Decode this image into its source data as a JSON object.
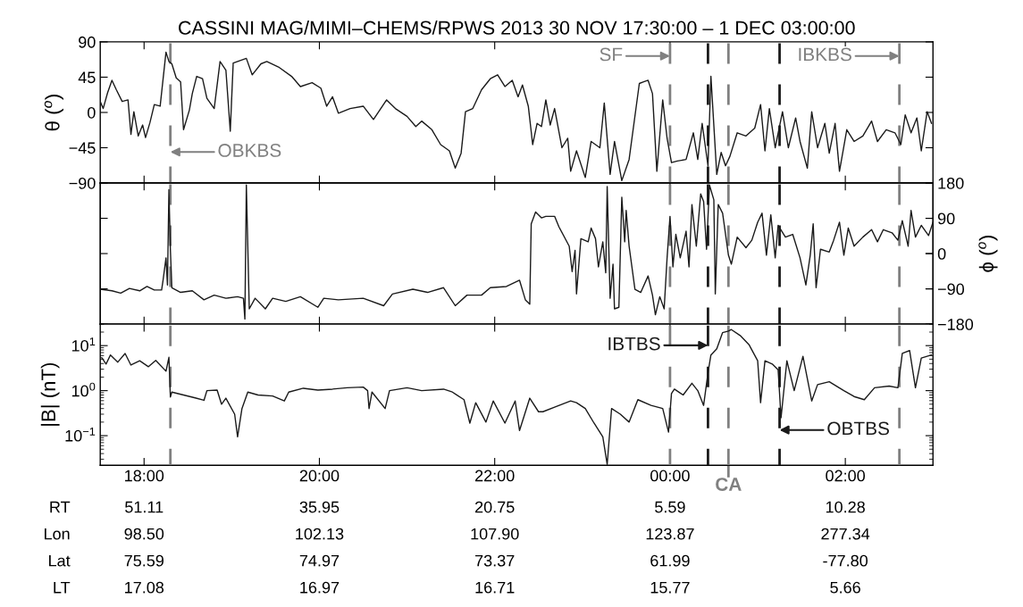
{
  "chart_data": [
    {
      "type": "line",
      "title": "CASSINI MAG/MIMI–CHEMS/RPWS 2013 30 NOV 17:30:00 – 1 DEC 03:00:00",
      "ylabel": "θ ($^{o}$)",
      "tick_labels": "y",
      "xlim": [
        "2013-11-30T17:30",
        "2013-12-01T03:00"
      ],
      "xticks": [
        {
          "value": "2013-11-30T18:00",
          "label": null
        },
        {
          "value": "2013-11-30T20:00",
          "label": null
        },
        {
          "value": "2013-11-30T22:00",
          "label": null
        },
        {
          "value": "2013-12-01T00:00",
          "label": null
        },
        {
          "value": "2013-12-01T02:00",
          "label": null
        }
      ],
      "ylim": [
        -90,
        90
      ],
      "yticks": [
        {
          "value": -90,
          "label": "−90"
        },
        {
          "value": -45,
          "label": "−45"
        },
        0,
        45,
        90
      ],
      "series": [
        {
          "color": "#1a1a1a",
          "x": [
            "2013-11-30T17:30",
            "2013-11-30T17:32",
            "2013-11-30T17:35",
            "2013-11-30T17:38",
            "2013-11-30T17:41",
            "2013-11-30T17:45",
            "2013-11-30T17:49",
            "2013-11-30T17:51",
            "2013-11-30T17:53",
            "2013-11-30T17:56",
            "2013-11-30T17:59",
            "2013-11-30T18:01",
            "2013-11-30T18:04",
            "2013-11-30T18:07",
            "2013-11-30T18:11",
            "2013-11-30T18:15",
            "2013-11-30T18:17",
            "2013-11-30T18:19",
            "2013-11-30T18:22",
            "2013-11-30T18:25",
            "2013-11-30T18:27",
            "2013-11-30T18:31",
            "2013-11-30T18:33",
            "2013-11-30T18:36",
            "2013-11-30T18:40",
            "2013-11-30T18:43",
            "2013-11-30T18:48",
            "2013-11-30T18:52",
            "2013-11-30T18:56",
            "2013-11-30T18:59",
            "2013-11-30T19:01",
            "2013-11-30T19:04",
            "2013-11-30T19:10",
            "2013-11-30T19:14",
            "2013-11-30T19:20",
            "2013-11-30T19:24",
            "2013-11-30T19:32",
            "2013-11-30T19:41",
            "2013-11-30T19:47",
            "2013-11-30T19:55",
            "2013-11-30T20:01",
            "2013-11-30T20:05",
            "2013-11-30T20:09",
            "2013-11-30T20:13",
            "2013-11-30T20:21",
            "2013-11-30T20:30",
            "2013-11-30T20:37",
            "2013-11-30T20:46",
            "2013-11-30T20:52",
            "2013-11-30T21:00",
            "2013-11-30T21:06",
            "2013-11-30T21:10",
            "2013-11-30T21:17",
            "2013-11-30T21:23",
            "2013-11-30T21:29",
            "2013-11-30T21:33",
            "2013-11-30T21:37",
            "2013-11-30T21:40",
            "2013-11-30T21:45",
            "2013-11-30T21:51",
            "2013-11-30T21:57",
            "2013-11-30T22:02",
            "2013-11-30T22:07",
            "2013-11-30T22:12",
            "2013-11-30T22:16",
            "2013-11-30T22:19",
            "2013-11-30T22:23",
            "2013-11-30T22:26",
            "2013-11-30T22:29",
            "2013-11-30T22:32",
            "2013-11-30T22:35",
            "2013-11-30T22:38",
            "2013-11-30T22:41",
            "2013-11-30T22:46",
            "2013-11-30T22:50",
            "2013-11-30T22:52",
            "2013-11-30T22:56",
            "2013-11-30T23:02",
            "2013-11-30T23:06",
            "2013-11-30T23:12",
            "2013-11-30T23:15",
            "2013-11-30T23:19",
            "2013-11-30T23:22",
            "2013-11-30T23:27",
            "2013-11-30T23:32",
            "2013-11-30T23:39",
            "2013-11-30T23:42",
            "2013-11-30T23:45",
            "2013-11-30T23:48",
            "2013-11-30T23:51",
            "2013-11-30T23:55",
            "2013-11-30T23:58",
            "2013-12-01T00:01",
            "2013-12-01T00:05",
            "2013-12-01T00:11",
            "2013-12-01T00:16",
            "2013-12-01T00:19",
            "2013-12-01T00:22",
            "2013-12-01T00:26",
            "2013-12-01T00:28",
            "2013-12-01T00:32",
            "2013-12-01T00:35",
            "2013-12-01T00:38",
            "2013-12-01T00:41",
            "2013-12-01T00:46",
            "2013-12-01T00:52",
            "2013-12-01T00:58",
            "2013-12-01T01:02",
            "2013-12-01T01:05",
            "2013-12-01T01:08",
            "2013-12-01T01:12",
            "2013-12-01T01:17",
            "2013-12-01T01:21",
            "2013-12-01T01:26",
            "2013-12-01T01:29",
            "2013-12-01T01:34",
            "2013-12-01T01:37",
            "2013-12-01T01:41",
            "2013-12-01T01:46",
            "2013-12-01T01:49",
            "2013-12-01T01:53",
            "2013-12-01T01:56",
            "2013-12-01T02:01",
            "2013-12-01T02:06",
            "2013-12-01T02:12",
            "2013-12-01T02:18",
            "2013-12-01T02:22",
            "2013-12-01T02:28",
            "2013-12-01T02:34",
            "2013-12-01T02:38",
            "2013-12-01T02:41",
            "2013-12-01T02:45",
            "2013-12-01T02:49",
            "2013-12-01T02:52",
            "2013-12-01T02:56",
            "2013-12-01T02:59"
          ],
          "values": [
            14,
            5,
            25,
            41,
            29,
            14,
            16,
            -28,
            1,
            -30,
            -16,
            -32,
            -13,
            10,
            8,
            77,
            65,
            62,
            44,
            39,
            -22,
            3,
            24,
            46,
            43,
            18,
            5,
            65,
            54,
            -24,
            63,
            65,
            69,
            48,
            62,
            65,
            58,
            46,
            33,
            38,
            31,
            8,
            20,
            -1,
            5,
            8,
            -9,
            16,
            5,
            -5,
            -18,
            -11,
            -22,
            -41,
            -49,
            -71,
            -52,
            1,
            5,
            29,
            43,
            48,
            33,
            41,
            20,
            35,
            8,
            -41,
            -14,
            -18,
            16,
            -16,
            5,
            -45,
            -33,
            -75,
            -49,
            -83,
            -37,
            -45,
            12,
            -79,
            -37,
            -87,
            -60,
            37,
            39,
            41,
            24,
            -75,
            16,
            -33,
            -64,
            -62,
            -60,
            -26,
            -60,
            -14,
            -68,
            46,
            -79,
            -51,
            -68,
            -56,
            -26,
            -30,
            -20,
            10,
            -49,
            5,
            -45,
            1,
            -45,
            -7,
            -37,
            -71,
            1,
            -45,
            -14,
            -52,
            -14,
            -75,
            -22,
            -37,
            -30,
            -11,
            -37,
            -22,
            -26,
            -41,
            -3,
            -26,
            -7,
            -49,
            1,
            -14
          ]
        }
      ],
      "ref_lines": [
        {
          "axis": "x",
          "value": "2013-11-30T18:18",
          "label": "OBKBS",
          "color": "#808080",
          "line_style": "dashed"
        },
        {
          "axis": "x",
          "value": "2013-12-01T00:00",
          "label": "SF",
          "color": "#808080",
          "line_style": "dashed"
        },
        {
          "axis": "x",
          "value": "2013-12-01T00:26",
          "color": "#1a1a1a",
          "line_style": "dashed"
        },
        {
          "axis": "x",
          "value": "2013-12-01T00:40",
          "color": "#808080",
          "line_style": "dashed"
        },
        {
          "axis": "x",
          "value": "2013-12-01T01:15",
          "color": "#1a1a1a",
          "line_style": "dashed"
        },
        {
          "axis": "x",
          "value": "2013-12-01T02:37",
          "label": "IBKBS",
          "color": "#808080",
          "line_style": "dashed"
        }
      ]
    },
    {
      "type": "line",
      "y2label": "ϕ ($^{o}$)",
      "tick_labels": "y",
      "xlim": [
        "2013-11-30T17:30",
        "2013-12-01T03:00"
      ],
      "xticks": [
        {
          "value": "2013-11-30T18:00",
          "label": null
        },
        {
          "value": "2013-11-30T20:00",
          "label": null
        },
        {
          "value": "2013-11-30T22:00",
          "label": null
        },
        {
          "value": "2013-12-01T00:00",
          "label": null
        },
        {
          "value": "2013-12-01T02:00",
          "label": null
        }
      ],
      "y2lim": [
        -180,
        180
      ],
      "y2ticks": [
        {
          "value": -180,
          "label": "−180"
        },
        {
          "value": -90,
          "label": "−90"
        },
        0,
        90,
        180
      ],
      "series": [
        {
          "color": "#1a1a1a",
          "axis": "y2",
          "x": [
            "2013-11-30T17:30",
            "2013-11-30T17:38",
            "2013-11-30T17:44",
            "2013-11-30T17:50",
            "2013-11-30T17:57",
            "2013-11-30T18:02",
            "2013-11-30T18:07",
            "2013-11-30T18:12",
            "2013-11-30T18:13",
            "2013-11-30T18:15",
            "2013-11-30T18:16",
            "2013-11-30T18:17",
            "2013-11-30T18:18",
            "2013-11-30T18:19",
            "2013-11-30T18:25",
            "2013-11-30T18:33",
            "2013-11-30T18:41",
            "2013-11-30T18:48",
            "2013-11-30T18:56",
            "2013-11-30T19:04",
            "2013-11-30T19:08",
            "2013-11-30T19:09",
            "2013-11-30T19:10",
            "2013-11-30T19:12",
            "2013-11-30T19:16",
            "2013-11-30T19:23",
            "2013-11-30T19:28",
            "2013-11-30T19:37",
            "2013-11-30T19:47",
            "2013-11-30T19:59",
            "2013-11-30T20:03",
            "2013-11-30T20:13",
            "2013-11-30T20:30",
            "2013-11-30T20:44",
            "2013-11-30T20:50",
            "2013-11-30T21:04",
            "2013-11-30T21:14",
            "2013-11-30T21:25",
            "2013-11-30T21:33",
            "2013-11-30T21:41",
            "2013-11-30T21:51",
            "2013-11-30T21:57",
            "2013-11-30T22:08",
            "2013-11-30T22:17",
            "2013-11-30T22:21",
            "2013-11-30T22:24",
            "2013-11-30T22:25",
            "2013-11-30T22:28",
            "2013-11-30T22:32",
            "2013-11-30T22:35",
            "2013-11-30T22:41",
            "2013-11-30T22:44",
            "2013-11-30T22:51",
            "2013-11-30T22:53",
            "2013-11-30T22:55",
            "2013-11-30T22:56",
            "2013-11-30T22:59",
            "2013-11-30T23:04",
            "2013-11-30T23:06",
            "2013-11-30T23:09",
            "2013-11-30T23:11",
            "2013-11-30T23:14",
            "2013-11-30T23:16",
            "2013-11-30T23:17",
            "2013-11-30T23:19",
            "2013-11-30T23:21",
            "2013-11-30T23:22",
            "2013-11-30T23:25",
            "2013-11-30T23:27",
            "2013-11-30T23:29",
            "2013-11-30T23:30",
            "2013-11-30T23:32",
            "2013-11-30T23:36",
            "2013-11-30T23:40",
            "2013-11-30T23:45",
            "2013-11-30T23:48",
            "2013-11-30T23:50",
            "2013-11-30T23:53",
            "2013-11-30T23:56",
            "2013-11-30T23:58",
            "2013-12-01T00:00",
            "2013-12-01T00:02",
            "2013-12-01T00:04",
            "2013-12-01T00:07",
            "2013-12-01T00:11",
            "2013-12-01T00:13",
            "2013-12-01T00:15",
            "2013-12-01T00:18",
            "2013-12-01T00:21",
            "2013-12-01T00:23",
            "2013-12-01T00:25",
            "2013-12-01T00:27",
            "2013-12-01T00:30",
            "2013-12-01T00:31",
            "2013-12-01T00:33",
            "2013-12-01T00:36",
            "2013-12-01T00:40",
            "2013-12-01T00:42",
            "2013-12-01T00:46",
            "2013-12-01T00:52",
            "2013-12-01T00:56",
            "2013-12-01T01:00",
            "2013-12-01T01:03",
            "2013-12-01T01:06",
            "2013-12-01T01:09",
            "2013-12-01T01:12",
            "2013-12-01T01:14",
            "2013-12-01T01:19",
            "2013-12-01T01:24",
            "2013-12-01T01:29",
            "2013-12-01T01:33",
            "2013-12-01T01:36",
            "2013-12-01T01:38",
            "2013-12-01T01:40",
            "2013-12-01T01:43",
            "2013-12-01T01:49",
            "2013-12-01T01:52",
            "2013-12-01T01:56",
            "2013-12-01T01:59",
            "2013-12-01T02:02",
            "2013-12-01T02:06",
            "2013-12-01T02:12",
            "2013-12-01T02:18",
            "2013-12-01T02:22",
            "2013-12-01T02:26",
            "2013-12-01T02:32",
            "2013-12-01T02:36",
            "2013-12-01T02:39",
            "2013-12-01T02:43",
            "2013-12-01T02:45",
            "2013-12-01T02:48",
            "2013-12-01T02:52",
            "2013-12-01T02:57",
            "2013-12-01T03:00"
          ],
          "values": [
            -91,
            -95,
            -101,
            -89,
            -95,
            -84,
            -93,
            -93,
            -68,
            -11,
            -80,
            163,
            11,
            -87,
            -99,
            -95,
            -118,
            -106,
            -114,
            -110,
            -114,
            -167,
            175,
            -141,
            -114,
            -141,
            -114,
            -122,
            -110,
            -137,
            -114,
            -118,
            -114,
            -133,
            -103,
            -91,
            -99,
            -87,
            -133,
            -106,
            -106,
            -87,
            -84,
            -68,
            -118,
            -129,
            76,
            106,
            91,
            95,
            95,
            68,
            19,
            -46,
            8,
            -103,
            38,
            30,
            65,
            38,
            -34,
            30,
            -49,
            171,
            -114,
            -27,
            -141,
            -137,
            144,
            30,
            110,
            19,
            -91,
            -99,
            -57,
            -106,
            -156,
            -110,
            -141,
            -11,
            95,
            -34,
            49,
            -11,
            57,
            -34,
            125,
            19,
            152,
            133,
            11,
            175,
            137,
            -103,
            125,
            103,
            -4,
            -27,
            42,
            15,
            34,
            80,
            103,
            -4,
            99,
            -11,
            72,
            42,
            49,
            -11,
            -80,
            -4,
            76,
            -87,
            11,
            4,
            34,
            80,
            -4,
            65,
            19,
            42,
            61,
            30,
            61,
            53,
            34,
            84,
            19,
            110,
            42,
            72,
            46,
            80
          ]
        }
      ],
      "ref_lines": [
        {
          "axis": "x",
          "value": "2013-11-30T18:18",
          "color": "#808080",
          "line_style": "dashed"
        },
        {
          "axis": "x",
          "value": "2013-12-01T00:00",
          "color": "#808080",
          "line_style": "dashed"
        },
        {
          "axis": "x",
          "value": "2013-12-01T00:26",
          "color": "#1a1a1a",
          "line_style": "dashed"
        },
        {
          "axis": "x",
          "value": "2013-12-01T00:40",
          "color": "#808080",
          "line_style": "dashed"
        },
        {
          "axis": "x",
          "value": "2013-12-01T01:15",
          "color": "#1a1a1a",
          "line_style": "dashed"
        },
        {
          "axis": "x",
          "value": "2013-12-01T02:37",
          "color": "#808080",
          "line_style": "dashed"
        }
      ]
    },
    {
      "type": "line",
      "ylabel": "|B| (nT)",
      "log": "y",
      "xlim": [
        "2013-11-30T17:30",
        "2013-12-01T03:00"
      ],
      "xticks": [
        {
          "value": "2013-11-30T18:00",
          "label": "18:00"
        },
        {
          "value": "2013-11-30T20:00",
          "label": "20:00"
        },
        {
          "value": "2013-11-30T22:00",
          "label": "22:00"
        },
        {
          "value": "2013-12-01T00:00",
          "label": "00:00"
        },
        {
          "value": "2013-12-01T02:00",
          "label": "02:00"
        }
      ],
      "ylim": [
        0.022,
        30
      ],
      "yticks": [
        {
          "value": 0.1,
          "label": "10$^{−1}$"
        },
        {
          "value": 1,
          "label": "10$^{0}$"
        },
        {
          "value": 10,
          "label": "10$^{1}$"
        }
      ],
      "series": [
        {
          "color": "#1a1a1a",
          "x": [
            "2013-11-30T17:31",
            "2013-11-30T17:34",
            "2013-11-30T17:37",
            "2013-11-30T17:42",
            "2013-11-30T17:47",
            "2013-11-30T17:51",
            "2013-11-30T17:57",
            "2013-11-30T18:03",
            "2013-11-30T18:08",
            "2013-11-30T18:15",
            "2013-11-30T18:17",
            "2013-11-30T18:18",
            "2013-11-30T18:19",
            "2013-11-30T18:27",
            "2013-11-30T18:35",
            "2013-11-30T18:41",
            "2013-11-30T18:43",
            "2013-11-30T18:50",
            "2013-11-30T18:53",
            "2013-11-30T18:56",
            "2013-11-30T19:02",
            "2013-11-30T19:04",
            "2013-11-30T19:07",
            "2013-11-30T19:11",
            "2013-11-30T19:18",
            "2013-11-30T19:28",
            "2013-11-30T19:36",
            "2013-11-30T19:39",
            "2013-11-30T19:49",
            "2013-11-30T19:59",
            "2013-11-30T20:09",
            "2013-11-30T20:19",
            "2013-11-30T20:30",
            "2013-11-30T20:33",
            "2013-11-30T20:34",
            "2013-11-30T20:36",
            "2013-11-30T20:45",
            "2013-11-30T20:48",
            "2013-11-30T21:00",
            "2013-11-30T21:10",
            "2013-11-30T21:25",
            "2013-11-30T21:31",
            "2013-11-30T21:39",
            "2013-11-30T21:43",
            "2013-11-30T21:47",
            "2013-11-30T21:54",
            "2013-11-30T21:59",
            "2013-11-30T22:07",
            "2013-11-30T22:14",
            "2013-11-30T22:17",
            "2013-11-30T22:24",
            "2013-11-30T22:30",
            "2013-11-30T22:33",
            "2013-11-30T22:41",
            "2013-11-30T22:52",
            "2013-11-30T22:56",
            "2013-11-30T23:02",
            "2013-11-30T23:08",
            "2013-11-30T23:14",
            "2013-11-30T23:17",
            "2013-11-30T23:20",
            "2013-11-30T23:26",
            "2013-11-30T23:32",
            "2013-11-30T23:38",
            "2013-11-30T23:47",
            "2013-11-30T23:55",
            "2013-11-30T23:59",
            "2013-12-01T00:01",
            "2013-12-01T00:03",
            "2013-12-01T00:09",
            "2013-12-01T00:15",
            "2013-12-01T00:19",
            "2013-12-01T00:23",
            "2013-12-01T00:26",
            "2013-12-01T00:28",
            "2013-12-01T00:32",
            "2013-12-01T00:36",
            "2013-12-01T00:40",
            "2013-12-01T00:42",
            "2013-12-01T00:48",
            "2013-12-01T00:54",
            "2013-12-01T01:00",
            "2013-12-01T01:02",
            "2013-12-01T01:05",
            "2013-12-01T01:10",
            "2013-12-01T01:14",
            "2013-12-01T01:16",
            "2013-12-01T01:20",
            "2013-12-01T01:25",
            "2013-12-01T01:31",
            "2013-12-01T01:37",
            "2013-12-01T01:41",
            "2013-12-01T01:49",
            "2013-12-01T01:59",
            "2013-12-01T02:06",
            "2013-12-01T02:13",
            "2013-12-01T02:20",
            "2013-12-01T02:30",
            "2013-12-01T02:36",
            "2013-12-01T02:39",
            "2013-12-01T02:44",
            "2013-12-01T02:48",
            "2013-12-01T02:52",
            "2013-12-01T02:59"
          ],
          "values": [
            5.4,
            3.9,
            6.2,
            4.3,
            6.7,
            3.7,
            4.6,
            3.4,
            4.7,
            2.7,
            5.5,
            0.72,
            0.93,
            0.8,
            0.69,
            0.61,
            1.0,
            1.03,
            0.5,
            0.68,
            0.3,
            0.094,
            0.4,
            0.93,
            0.8,
            0.76,
            0.59,
            0.93,
            1.13,
            1.03,
            1.08,
            1.16,
            1.2,
            1.0,
            0.4,
            0.93,
            0.4,
            1.0,
            1.16,
            1.0,
            1.08,
            0.93,
            0.63,
            0.19,
            0.54,
            0.2,
            0.59,
            0.19,
            0.59,
            0.13,
            0.68,
            0.34,
            0.34,
            0.43,
            0.59,
            0.54,
            0.4,
            0.19,
            0.094,
            0.023,
            0.4,
            0.3,
            0.2,
            0.63,
            0.47,
            0.4,
            0.12,
            0.86,
            1.08,
            0.8,
            1.46,
            1.0,
            0.47,
            2.5,
            6.2,
            8.5,
            19.5,
            21.1,
            22.7,
            16.8,
            10.6,
            4.6,
            0.54,
            4.6,
            3.9,
            2.9,
            0.25,
            4.6,
            1.0,
            5.8,
            0.59,
            1.36,
            1.58,
            1.0,
            0.74,
            0.63,
            1.16,
            1.26,
            1.16,
            6.7,
            7.8,
            1.16,
            5.3,
            6.2
          ]
        }
      ],
      "ref_lines": [
        {
          "axis": "x",
          "value": "2013-11-30T18:18",
          "color": "#808080",
          "line_style": "dashed"
        },
        {
          "axis": "x",
          "value": "2013-12-01T00:00",
          "color": "#808080",
          "line_style": "dashed"
        },
        {
          "axis": "x",
          "value": "2013-12-01T00:26",
          "label": "IBTBS",
          "color": "#1a1a1a",
          "line_style": "dashed"
        },
        {
          "axis": "x",
          "value": "2013-12-01T00:40",
          "label": "CA",
          "color": "#808080",
          "line_style": "dashed"
        },
        {
          "axis": "x",
          "value": "2013-12-01T01:15",
          "label": "OBTBS",
          "color": "#1a1a1a",
          "line_style": "dashed"
        },
        {
          "axis": "x",
          "value": "2013-12-01T02:37",
          "color": "#808080",
          "line_style": "dashed"
        }
      ],
      "annotations": [
        "RT",
        "51.11",
        "35.95",
        "20.75",
        "5.59",
        "10.28",
        "Lon",
        "98.50",
        "102.13",
        "107.90",
        "123.87",
        "277.34",
        "Lat",
        "75.59",
        "74.97",
        "73.37",
        "61.99",
        "-77.80",
        "LT",
        "17.08",
        "16.97",
        "16.71",
        "15.77",
        "5.66"
      ]
    }
  ]
}
